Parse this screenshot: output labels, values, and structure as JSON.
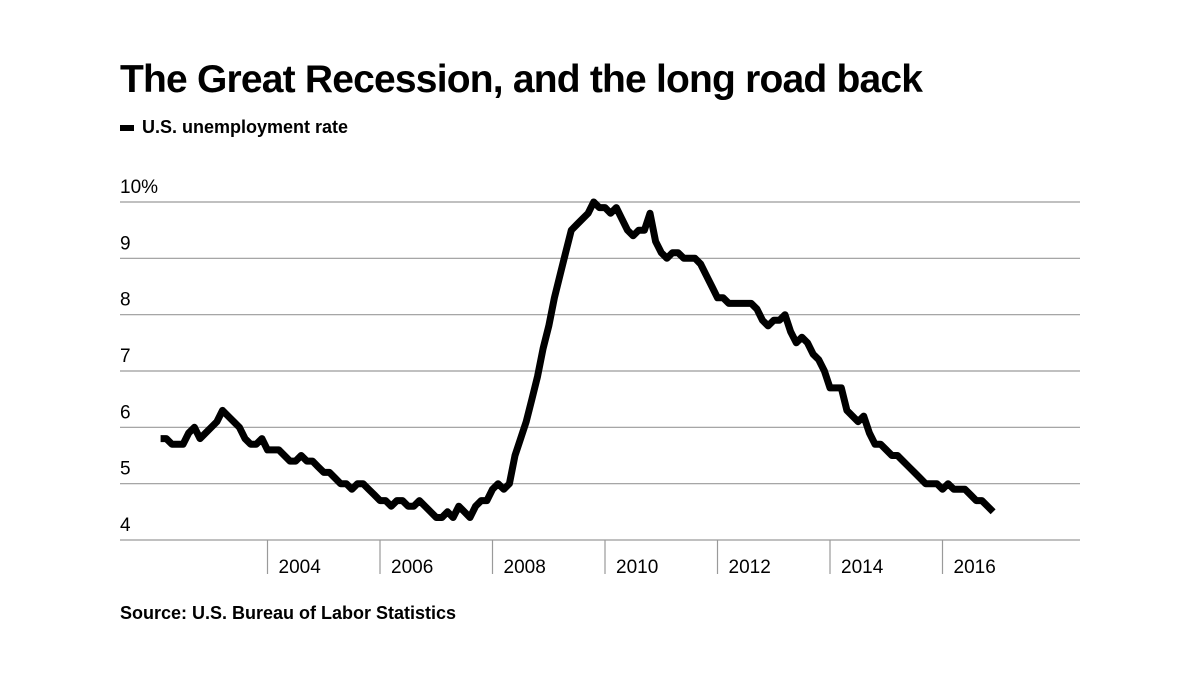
{
  "title": "The Great Recession, and the long road back",
  "legend": {
    "label": "U.S. unemployment rate"
  },
  "source": "Source: U.S. Bureau of Labor Statistics",
  "colors": {
    "line": "#000000",
    "grid": "#9a9a9a",
    "background": "#ffffff"
  },
  "chart_data": {
    "type": "line",
    "title": "The Great Recession, and the long road back",
    "xlabel": "",
    "ylabel": "",
    "xlim": [
      2002,
      2018
    ],
    "ylim": [
      4,
      10
    ],
    "grid": "horizontal",
    "legend_position": "top-left",
    "y_ticks": [
      {
        "value": 10,
        "label": "10%"
      },
      {
        "value": 9,
        "label": "9"
      },
      {
        "value": 8,
        "label": "8"
      },
      {
        "value": 7,
        "label": "7"
      },
      {
        "value": 6,
        "label": "6"
      },
      {
        "value": 5,
        "label": "5"
      },
      {
        "value": 4,
        "label": "4"
      }
    ],
    "x_ticks": [
      {
        "value": 2004,
        "label": "2004"
      },
      {
        "value": 2006,
        "label": "2006"
      },
      {
        "value": 2008,
        "label": "2008"
      },
      {
        "value": 2010,
        "label": "2010"
      },
      {
        "value": 2012,
        "label": "2012"
      },
      {
        "value": 2014,
        "label": "2014"
      },
      {
        "value": 2016,
        "label": "2016"
      }
    ],
    "series": [
      {
        "name": "U.S. unemployment rate",
        "x": [
          2002.1,
          2002.2,
          2002.3,
          2002.4,
          2002.5,
          2002.6,
          2002.7,
          2002.8,
          2002.9,
          2003.0,
          2003.1,
          2003.2,
          2003.3,
          2003.4,
          2003.5,
          2003.6,
          2003.7,
          2003.8,
          2003.9,
          2004.0,
          2004.1,
          2004.2,
          2004.3,
          2004.4,
          2004.5,
          2004.6,
          2004.7,
          2004.8,
          2004.9,
          2005.0,
          2005.1,
          2005.2,
          2005.3,
          2005.4,
          2005.5,
          2005.6,
          2005.7,
          2005.8,
          2005.9,
          2006.0,
          2006.1,
          2006.2,
          2006.3,
          2006.4,
          2006.5,
          2006.6,
          2006.7,
          2006.8,
          2006.9,
          2007.0,
          2007.1,
          2007.2,
          2007.3,
          2007.4,
          2007.5,
          2007.6,
          2007.7,
          2007.8,
          2007.9,
          2008.0,
          2008.1,
          2008.2,
          2008.3,
          2008.4,
          2008.5,
          2008.6,
          2008.7,
          2008.8,
          2008.9,
          2009.0,
          2009.1,
          2009.2,
          2009.3,
          2009.4,
          2009.5,
          2009.6,
          2009.7,
          2009.8,
          2009.9,
          2010.0,
          2010.1,
          2010.2,
          2010.3,
          2010.4,
          2010.5,
          2010.6,
          2010.7,
          2010.8,
          2010.9,
          2011.0,
          2011.1,
          2011.2,
          2011.3,
          2011.4,
          2011.5,
          2011.6,
          2011.7,
          2011.8,
          2011.9,
          2012.0,
          2012.1,
          2012.2,
          2012.3,
          2012.4,
          2012.5,
          2012.6,
          2012.7,
          2012.8,
          2012.9,
          2013.0,
          2013.1,
          2013.2,
          2013.3,
          2013.4,
          2013.5,
          2013.6,
          2013.7,
          2013.8,
          2013.9,
          2014.0,
          2014.1,
          2014.2,
          2014.3,
          2014.4,
          2014.5,
          2014.6,
          2014.7,
          2014.8,
          2014.9,
          2015.0,
          2015.1,
          2015.2,
          2015.3,
          2015.4,
          2015.5,
          2015.6,
          2015.7,
          2015.8,
          2015.9,
          2016.0,
          2016.1,
          2016.2,
          2016.3,
          2016.4,
          2016.5,
          2016.6,
          2016.7,
          2016.8,
          2016.9
        ],
        "values": [
          5.8,
          5.8,
          5.7,
          5.7,
          5.7,
          5.9,
          6.0,
          5.8,
          5.9,
          6.0,
          6.1,
          6.3,
          6.2,
          6.1,
          6.0,
          5.8,
          5.7,
          5.7,
          5.8,
          5.6,
          5.6,
          5.6,
          5.5,
          5.4,
          5.4,
          5.5,
          5.4,
          5.4,
          5.3,
          5.2,
          5.2,
          5.1,
          5.0,
          5.0,
          4.9,
          5.0,
          5.0,
          4.9,
          4.8,
          4.7,
          4.7,
          4.6,
          4.7,
          4.7,
          4.6,
          4.6,
          4.7,
          4.6,
          4.5,
          4.4,
          4.4,
          4.5,
          4.4,
          4.6,
          4.5,
          4.4,
          4.6,
          4.7,
          4.7,
          4.9,
          5.0,
          4.9,
          5.0,
          5.5,
          5.8,
          6.1,
          6.5,
          6.9,
          7.4,
          7.8,
          8.3,
          8.7,
          9.1,
          9.5,
          9.6,
          9.7,
          9.8,
          10.0,
          9.9,
          9.9,
          9.8,
          9.9,
          9.7,
          9.5,
          9.4,
          9.5,
          9.5,
          9.8,
          9.3,
          9.1,
          9.0,
          9.1,
          9.1,
          9.0,
          9.0,
          9.0,
          8.9,
          8.7,
          8.5,
          8.3,
          8.3,
          8.2,
          8.2,
          8.2,
          8.2,
          8.2,
          8.1,
          7.9,
          7.8,
          7.9,
          7.9,
          8.0,
          7.7,
          7.5,
          7.6,
          7.5,
          7.3,
          7.2,
          7.0,
          6.7,
          6.7,
          6.7,
          6.3,
          6.2,
          6.1,
          6.2,
          5.9,
          5.7,
          5.7,
          5.6,
          5.5,
          5.5,
          5.4,
          5.3,
          5.2,
          5.1,
          5.0,
          5.0,
          5.0,
          4.9,
          5.0,
          4.9,
          4.9,
          4.9,
          4.8,
          4.7,
          4.7,
          4.6,
          4.5
        ]
      }
    ]
  }
}
